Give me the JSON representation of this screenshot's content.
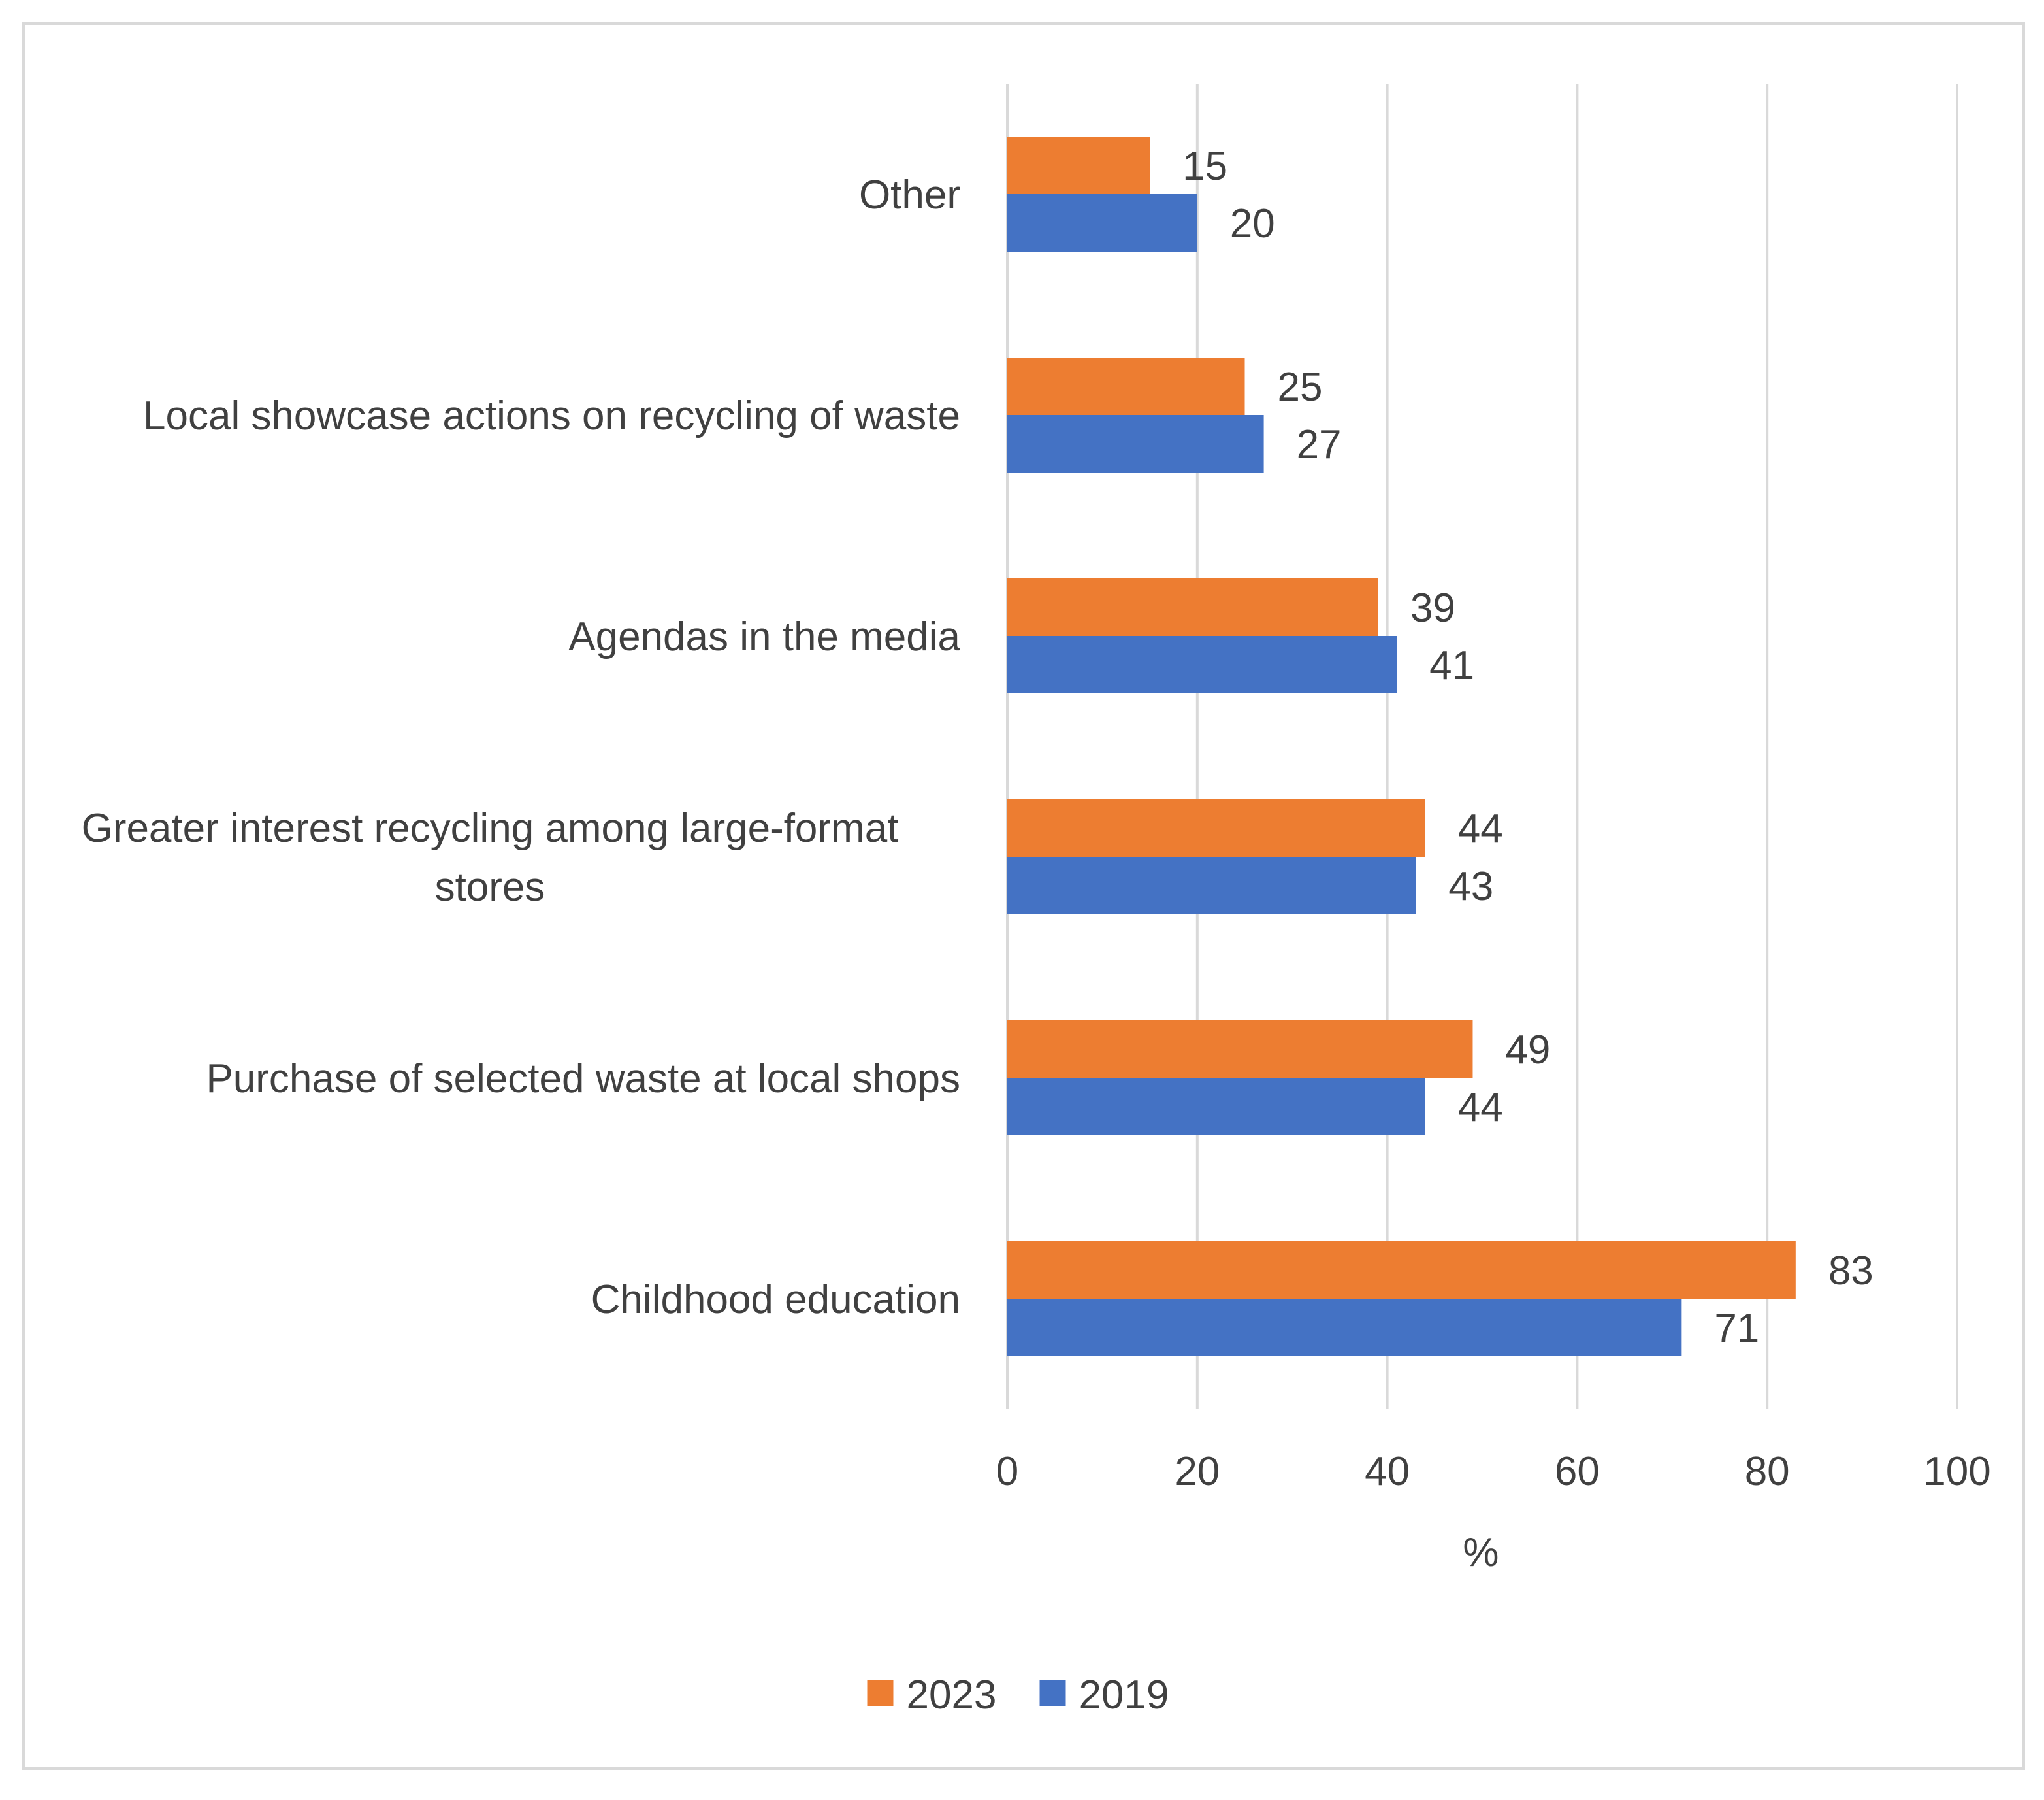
{
  "chart_data": {
    "type": "bar",
    "orientation": "horizontal",
    "categories": [
      "Other",
      "Local showcase actions on recycling of waste",
      "Agendas in the media",
      "Greater interest recycling among large-format stores",
      "Purchase of selected waste at local shops",
      "Childhood education"
    ],
    "category_label_lines": [
      [
        "Other"
      ],
      [
        "Local showcase actions on recycling of waste"
      ],
      [
        "Agendas in the media"
      ],
      [
        "Greater interest recycling among large-format",
        "stores"
      ],
      [
        "Purchase of selected waste at local shops"
      ],
      [
        "Childhood education"
      ]
    ],
    "series": [
      {
        "name": "2023",
        "color": "#ED7D31",
        "values": [
          15,
          25,
          39,
          44,
          49,
          83
        ]
      },
      {
        "name": "2019",
        "color": "#4472C4",
        "values": [
          20,
          27,
          41,
          43,
          44,
          71
        ]
      }
    ],
    "xlabel": "%",
    "xlim": [
      0,
      100
    ],
    "xticks": [
      0,
      20,
      40,
      60,
      80,
      100
    ],
    "grid": "vertical",
    "legend_position": "bottom",
    "data_labels": true
  }
}
